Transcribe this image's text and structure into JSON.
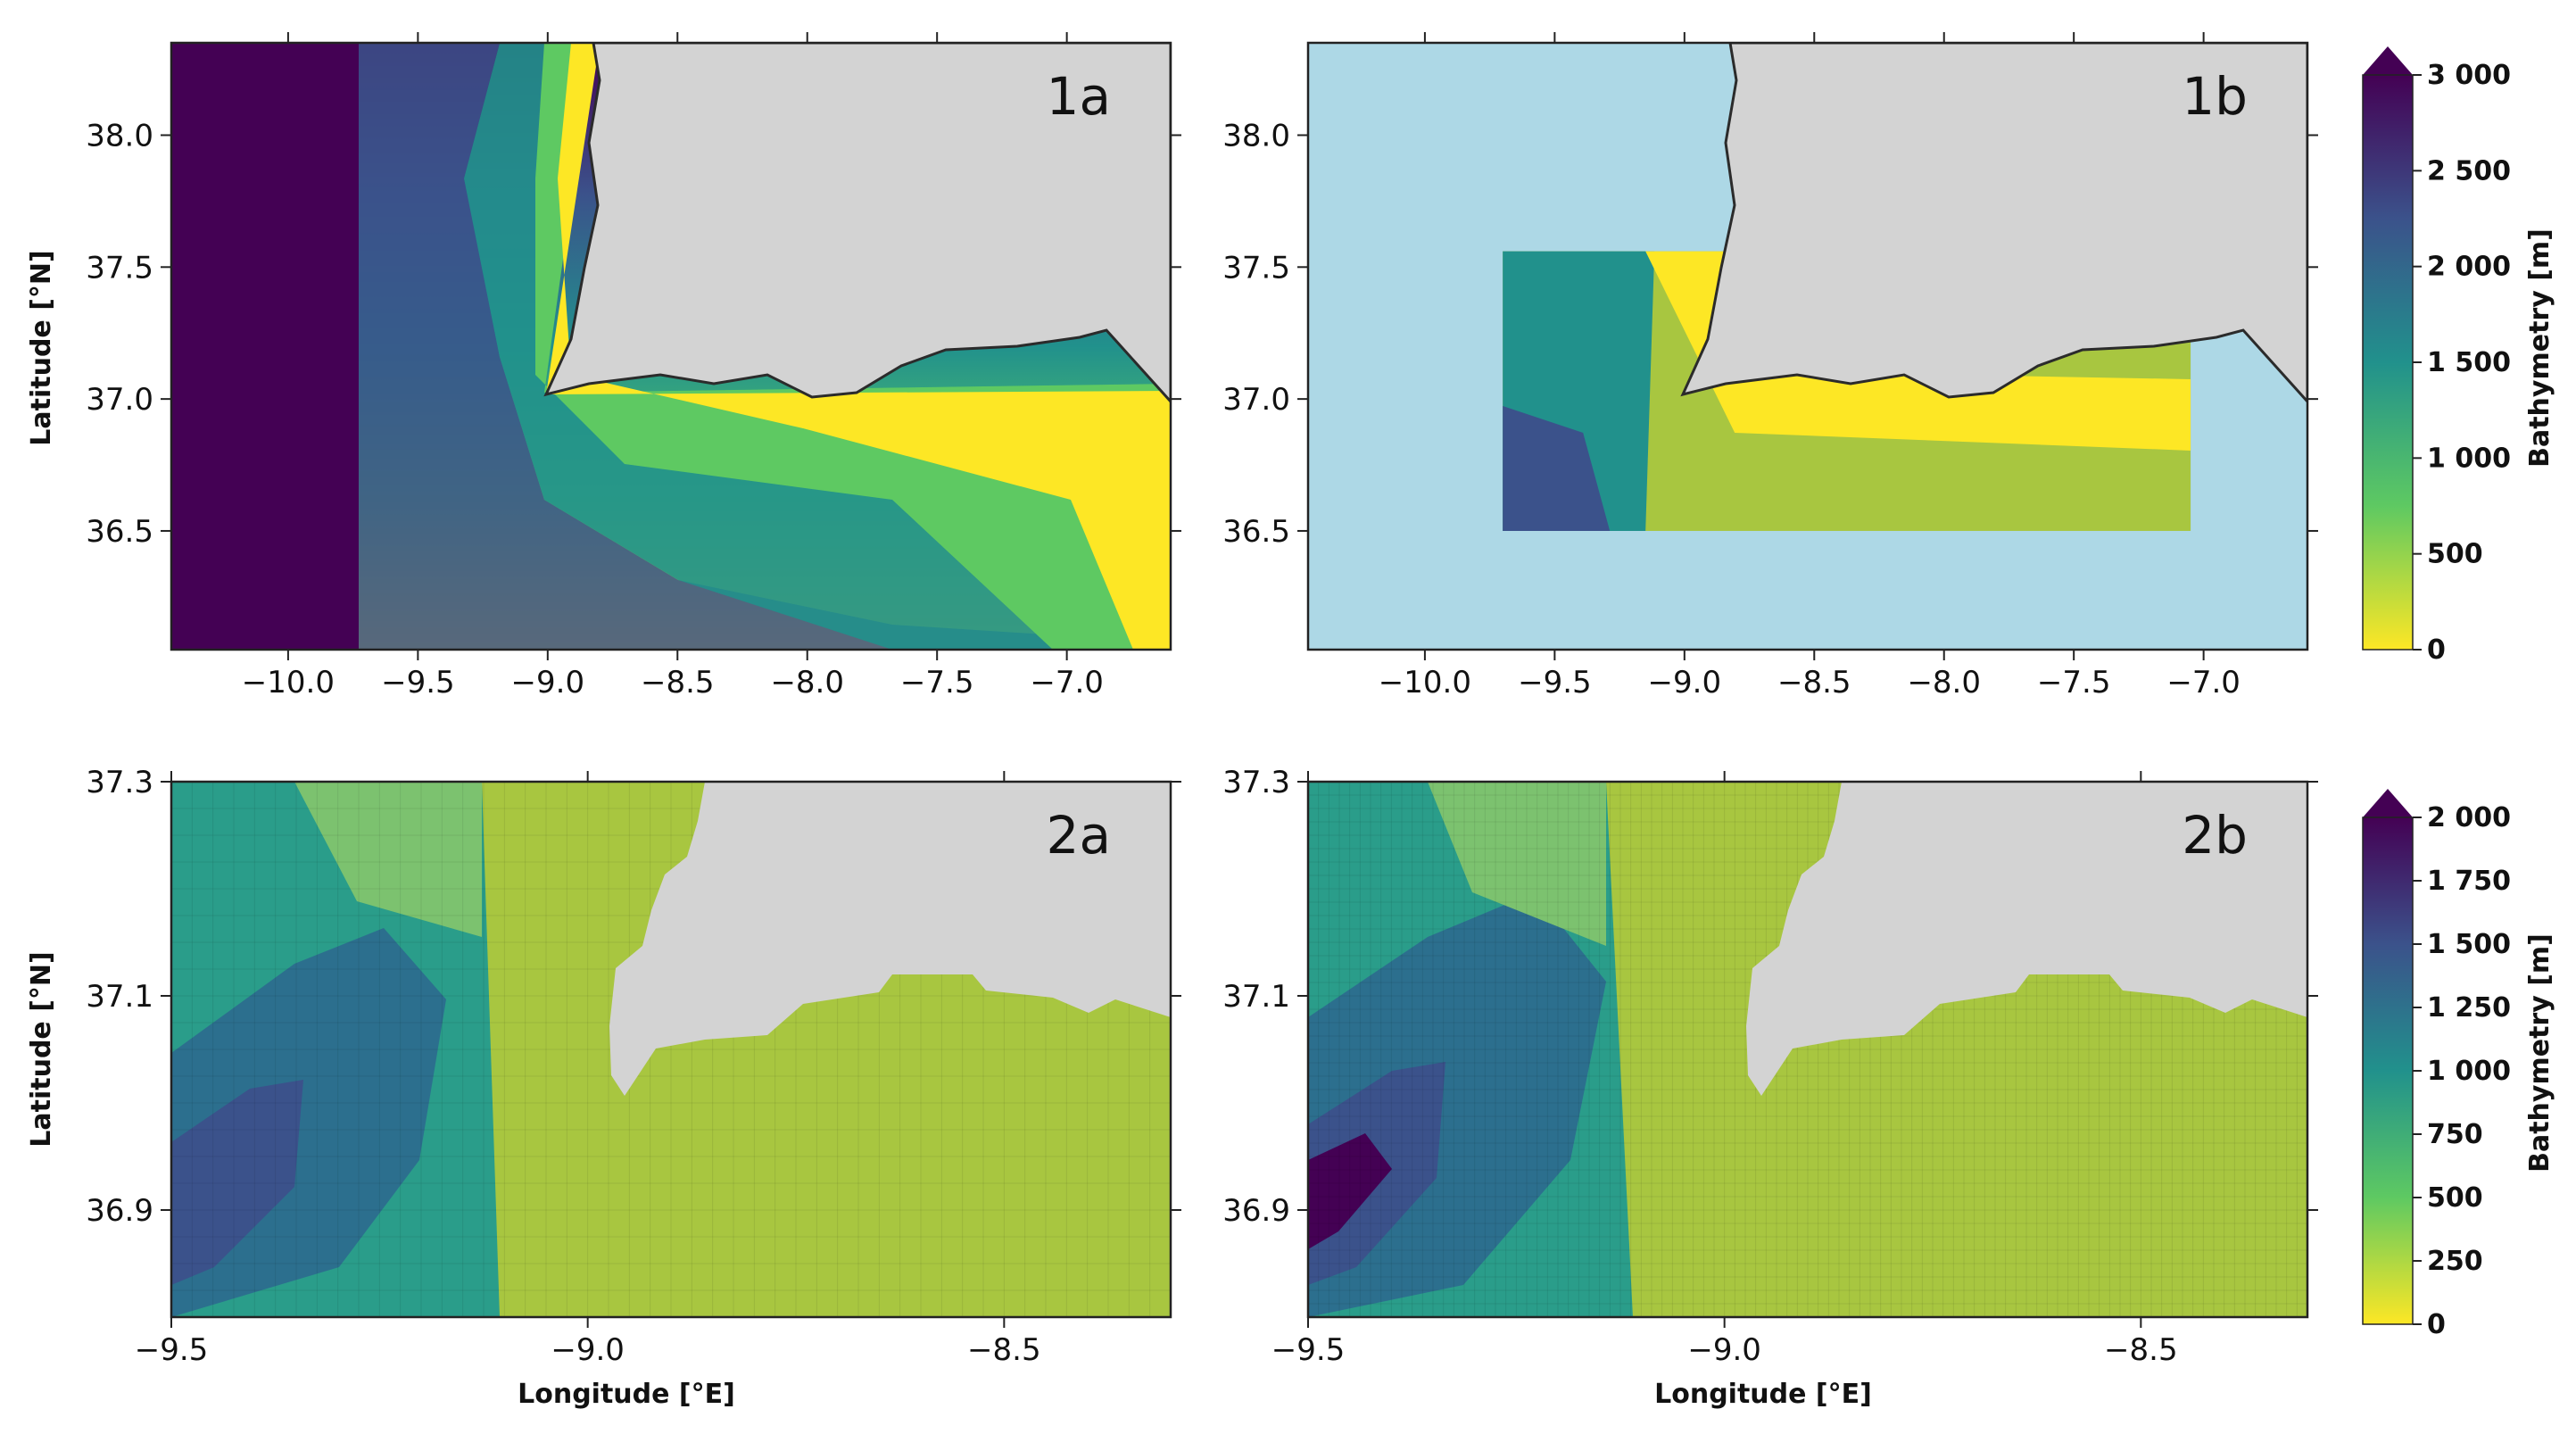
{
  "colors": {
    "ocean_outside": "#add8e6",
    "land": "#d3d3d3",
    "coastline": "#2b2b2b",
    "viridis_r": [
      "#fde725",
      "#5ec962",
      "#21918c",
      "#3b528b",
      "#440154"
    ]
  },
  "chart_data": [
    {
      "type": "heatmap",
      "panel_label": "1a",
      "xlabel": "",
      "ylabel": "Latitude [°N]",
      "xlim": [
        -10.45,
        -6.6
      ],
      "ylim": [
        36.05,
        38.35
      ],
      "xticks": [
        -10.0,
        -9.5,
        -9.0,
        -8.5,
        -8.0,
        -7.5,
        -7.0
      ],
      "xtick_labels": [
        "−10.0",
        "−9.5",
        "−9.0",
        "−8.5",
        "−8.0",
        "−7.5",
        "−7.0"
      ],
      "yticks": [
        36.5,
        37.0,
        37.5,
        38.0
      ],
      "ytick_labels": [
        "36.5",
        "37.0",
        "37.5",
        "38.0"
      ],
      "data_extent": {
        "lon": [
          -10.45,
          -6.6
        ],
        "lat": [
          36.05,
          38.35
        ]
      },
      "colorbar_max": 3000
    },
    {
      "type": "heatmap",
      "panel_label": "1b",
      "xlabel": "",
      "ylabel": "",
      "xlim": [
        -10.45,
        -6.6
      ],
      "ylim": [
        36.05,
        38.35
      ],
      "xticks": [
        -10.0,
        -9.5,
        -9.0,
        -8.5,
        -8.0,
        -7.5,
        -7.0
      ],
      "xtick_labels": [
        "−10.0",
        "−9.5",
        "−9.0",
        "−8.5",
        "−8.0",
        "−7.5",
        "−7.0"
      ],
      "yticks": [
        36.5,
        37.0,
        37.5,
        38.0
      ],
      "ytick_labels": [
        "36.5",
        "37.0",
        "37.5",
        "38.0"
      ],
      "data_extent": {
        "lon": [
          -9.7,
          -7.05
        ],
        "lat": [
          36.5,
          37.56
        ]
      },
      "colorbar_max": 3000
    },
    {
      "type": "heatmap",
      "panel_label": "2a",
      "xlabel": "Longitude [°E]",
      "ylabel": "Latitude [°N]",
      "xlim": [
        -9.5,
        -8.3
      ],
      "ylim": [
        36.8,
        37.3
      ],
      "xticks": [
        -9.5,
        -9.0,
        -8.5
      ],
      "xtick_labels": [
        "−9.5",
        "−9.0",
        "−8.5"
      ],
      "yticks": [
        36.9,
        37.1,
        37.3
      ],
      "ytick_labels": [
        "36.9",
        "37.1",
        "37.3"
      ],
      "grid_cells": [
        48,
        20
      ],
      "colorbar_max": 2000
    },
    {
      "type": "heatmap",
      "panel_label": "2b",
      "xlabel": "Longitude [°E]",
      "ylabel": "",
      "xlim": [
        -9.5,
        -8.3
      ],
      "ylim": [
        36.8,
        37.3
      ],
      "xticks": [
        -9.5,
        -9.0,
        -8.5
      ],
      "xtick_labels": [
        "−9.5",
        "−9.0",
        "−8.5"
      ],
      "yticks": [
        36.9,
        37.1,
        37.3
      ],
      "ytick_labels": [
        "36.9",
        "37.1",
        "37.3"
      ],
      "grid_cells": [
        96,
        40
      ],
      "colorbar_max": 2000
    }
  ],
  "colorbars": [
    {
      "label": "Bathymetry [m]",
      "range": [
        0,
        3000
      ],
      "extend": "max",
      "ticks": [
        0,
        500,
        1000,
        1500,
        2000,
        2500,
        3000
      ],
      "tick_labels": [
        "0",
        "500",
        "1 000",
        "1 500",
        "2 000",
        "2 500",
        "3 000"
      ]
    },
    {
      "label": "Bathymetry [m]",
      "range": [
        0,
        2000
      ],
      "extend": "max",
      "ticks": [
        0,
        250,
        500,
        750,
        1000,
        1250,
        1500,
        1750,
        2000
      ],
      "tick_labels": [
        "0",
        "250",
        "500",
        "750",
        "1 000",
        "1 250",
        "1 500",
        "1 750",
        "2 000"
      ]
    }
  ]
}
